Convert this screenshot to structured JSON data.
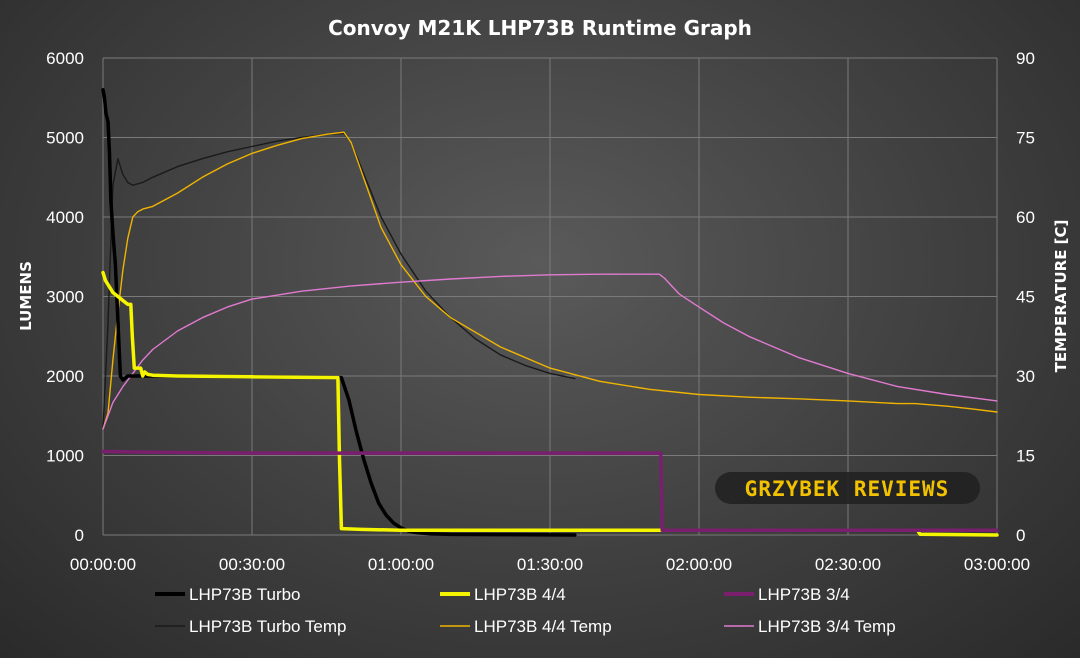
{
  "colors": {
    "background": "#3f3f3f",
    "grid": "#7a7a7a",
    "text": "#ffffff",
    "turbo": "#000000",
    "high": "#f5f500",
    "med": "#7a1f6e",
    "turbo_temp": "#1a1a1a",
    "high_temp": "#f0b400",
    "med_temp": "#e07ad0",
    "watermark": "#f2c200"
  },
  "watermark": "GRZYBEK REVIEWS",
  "chart_data": {
    "type": "line",
    "title": "Convoy M21K LHP73B Runtime Graph",
    "xlabel": "",
    "ylabel": "LUMENS",
    "y2label": "TEMPERATURE [C]",
    "xlim": [
      0,
      180
    ],
    "ylim": [
      0,
      6000
    ],
    "y2lim": [
      0,
      90
    ],
    "grid": true,
    "legend_position": "bottom",
    "xticks": [
      "00:00:00",
      "00:30:00",
      "01:00:00",
      "01:30:00",
      "02:00:00",
      "02:30:00",
      "03:00:00"
    ],
    "yticks": [
      "0",
      "1000",
      "2000",
      "3000",
      "4000",
      "5000",
      "6000"
    ],
    "y2ticks": [
      "0",
      "15",
      "30",
      "45",
      "60",
      "75",
      "90"
    ],
    "series": [
      {
        "name": "LHP73B Turbo",
        "axis": "left",
        "color": "#000000",
        "x": [
          0,
          0.3,
          0.6,
          1.0,
          1.3,
          1.6,
          2.0,
          2.5,
          3.0,
          3.5,
          4.0,
          5.0,
          6.0,
          8.0,
          10.0,
          15.0,
          30.0,
          48.0,
          49.5,
          51.0,
          52.5,
          54.0,
          55.5,
          57.0,
          58.5,
          60.0,
          61.5,
          63.0,
          66.0,
          70.0,
          80.0,
          95.0
        ],
        "y": [
          5600,
          5500,
          5300,
          5200,
          4800,
          4200,
          3800,
          3400,
          2700,
          2000,
          1950,
          2000,
          2000,
          2000,
          2000,
          2000,
          1990,
          1980,
          1700,
          1300,
          950,
          650,
          400,
          250,
          150,
          90,
          50,
          30,
          15,
          8,
          5,
          0
        ]
      },
      {
        "name": "LHP73B 4/4",
        "axis": "left",
        "color": "#f5f500",
        "x": [
          0,
          0.5,
          1.0,
          2.0,
          3.0,
          4.0,
          5.0,
          5.6,
          5.9,
          6.3,
          6.6,
          7.0,
          7.6,
          8.0,
          8.4,
          9.0,
          10.0,
          15.0,
          30.0,
          47.3,
          47.6,
          48.0,
          52.0,
          60.0,
          80.0,
          110.0,
          140.0,
          160.0,
          164.0,
          164.5,
          180.0
        ],
        "y": [
          3300,
          3200,
          3150,
          3050,
          3000,
          2950,
          2900,
          2900,
          2500,
          2100,
          2100,
          2100,
          2100,
          2000,
          2050,
          2020,
          2010,
          2000,
          1990,
          1980,
          1000,
          80,
          70,
          60,
          60,
          60,
          60,
          60,
          60,
          10,
          0
        ]
      },
      {
        "name": "LHP73B 3/4",
        "axis": "left",
        "color": "#7a1f6e",
        "x": [
          0,
          10,
          30,
          60,
          90,
          112.3,
          112.6,
          130,
          150,
          180
        ],
        "y": [
          1050,
          1040,
          1030,
          1030,
          1030,
          1030,
          60,
          60,
          60,
          60
        ]
      },
      {
        "name": "LHP73B Turbo Temp",
        "axis": "right",
        "color": "#1a1a1a",
        "x": [
          0,
          1,
          2,
          3,
          4,
          5,
          6,
          8,
          10,
          15,
          20,
          25,
          30,
          35,
          40,
          45,
          48.5,
          50,
          53,
          56,
          60,
          65,
          70,
          75,
          80,
          85,
          90,
          95
        ],
        "y": [
          20,
          40,
          66,
          71,
          68,
          66.5,
          66,
          66.5,
          67.5,
          69.5,
          71,
          72.3,
          73.3,
          74.3,
          75,
          75.6,
          75.8,
          74,
          67,
          60,
          53,
          46,
          41,
          37,
          34,
          32,
          30.5,
          29.5
        ]
      },
      {
        "name": "LHP73B 4/4 Temp",
        "axis": "right",
        "color": "#f0b400",
        "x": [
          0,
          1,
          2,
          3,
          4,
          5,
          6,
          7,
          8,
          10,
          15,
          20,
          25,
          30,
          35,
          40,
          45,
          48.5,
          50,
          53,
          56,
          60,
          65,
          70,
          80,
          90,
          100,
          110,
          120,
          130,
          140,
          150,
          160,
          163.5,
          170,
          175,
          180
        ],
        "y": [
          20,
          23,
          33,
          42,
          50,
          56,
          60,
          61,
          61.5,
          62,
          64.5,
          67.5,
          70,
          72,
          73.5,
          74.8,
          75.6,
          76,
          74,
          66,
          58,
          51,
          45,
          41,
          35.5,
          31.5,
          29,
          27.5,
          26.5,
          26,
          25.7,
          25.3,
          24.8,
          24.8,
          24.3,
          23.8,
          23.2
        ]
      },
      {
        "name": "LHP73B 3/4 Temp",
        "axis": "right",
        "color": "#e07ad0",
        "x": [
          0,
          1,
          2,
          4,
          6,
          8,
          10,
          15,
          20,
          25,
          30,
          40,
          50,
          60,
          70,
          80,
          90,
          100,
          112,
          113,
          116,
          120,
          125,
          130,
          140,
          150,
          160,
          170,
          180
        ],
        "y": [
          20,
          22.5,
          25,
          28,
          30.5,
          33,
          35,
          38.5,
          41,
          43,
          44.5,
          46,
          47,
          47.7,
          48.3,
          48.8,
          49.1,
          49.2,
          49.2,
          48.5,
          45.5,
          43,
          40,
          37.5,
          33.5,
          30.5,
          28,
          26.5,
          25.3
        ]
      }
    ]
  }
}
